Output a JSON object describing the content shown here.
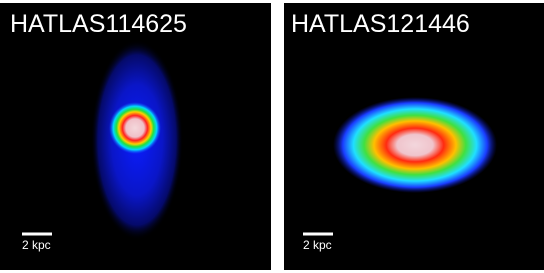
{
  "panels": [
    {
      "title": "HATLAS114625",
      "scale_label": "2 kpc"
    },
    {
      "title": "HATLAS121446",
      "scale_label": "2 kpc"
    }
  ]
}
